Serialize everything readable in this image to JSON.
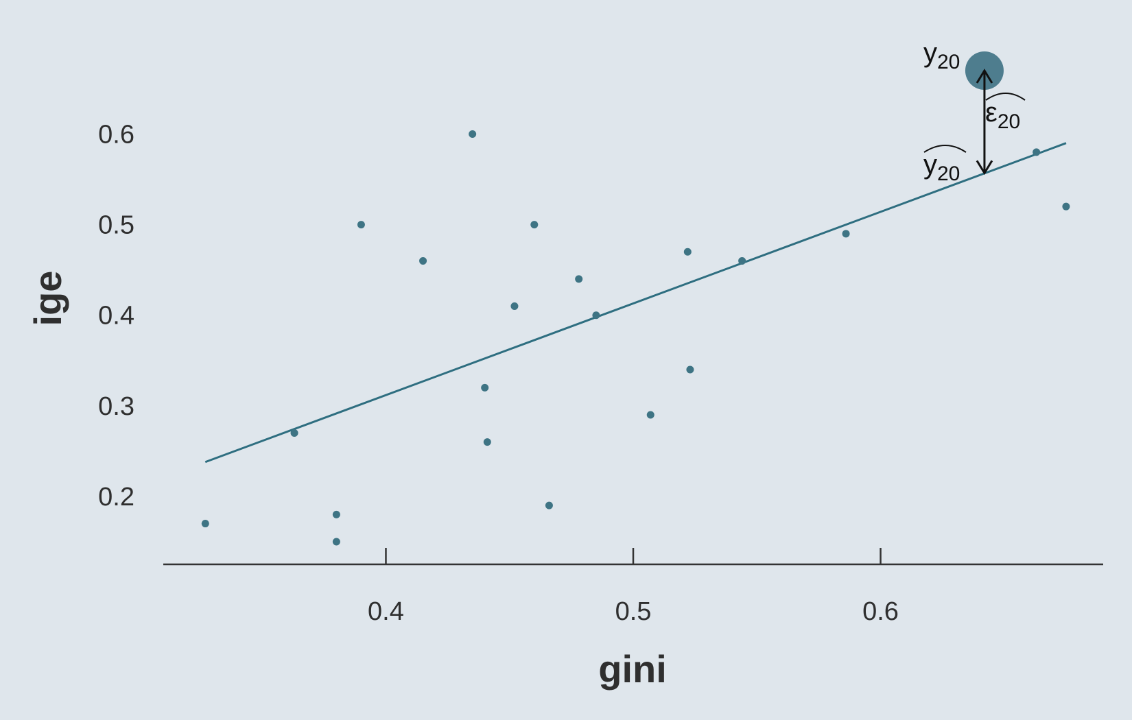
{
  "chart_data": {
    "type": "scatter",
    "title": "",
    "xlabel": "gini",
    "ylabel": "ige",
    "xlim": [
      0.31,
      0.69
    ],
    "ylim": [
      0.125,
      0.695
    ],
    "x_ticks": [
      {
        "value": 0.4,
        "label": "0.4"
      },
      {
        "value": 0.5,
        "label": "0.5"
      },
      {
        "value": 0.6,
        "label": "0.6"
      }
    ],
    "y_ticks": [
      {
        "value": 0.2,
        "label": "0.2"
      },
      {
        "value": 0.3,
        "label": "0.3"
      },
      {
        "value": 0.4,
        "label": "0.4"
      },
      {
        "value": 0.5,
        "label": "0.5"
      },
      {
        "value": 0.6,
        "label": "0.6"
      }
    ],
    "grid": false,
    "legend": "none",
    "colors": {
      "background": "#dfe6ec",
      "point": "#3e7484",
      "line": "#2e6e80",
      "highlight": "#467789",
      "axis": "#333333",
      "annotation": "#111111"
    },
    "points": [
      {
        "x": 0.327,
        "y": 0.17
      },
      {
        "x": 0.363,
        "y": 0.27
      },
      {
        "x": 0.38,
        "y": 0.18
      },
      {
        "x": 0.38,
        "y": 0.15
      },
      {
        "x": 0.39,
        "y": 0.5
      },
      {
        "x": 0.415,
        "y": 0.46
      },
      {
        "x": 0.435,
        "y": 0.6
      },
      {
        "x": 0.44,
        "y": 0.32
      },
      {
        "x": 0.441,
        "y": 0.26
      },
      {
        "x": 0.452,
        "y": 0.41
      },
      {
        "x": 0.46,
        "y": 0.5
      },
      {
        "x": 0.466,
        "y": 0.19
      },
      {
        "x": 0.478,
        "y": 0.44
      },
      {
        "x": 0.485,
        "y": 0.4
      },
      {
        "x": 0.507,
        "y": 0.29
      },
      {
        "x": 0.522,
        "y": 0.47
      },
      {
        "x": 0.523,
        "y": 0.34
      },
      {
        "x": 0.544,
        "y": 0.46
      },
      {
        "x": 0.586,
        "y": 0.49
      },
      {
        "x": 0.663,
        "y": 0.58
      },
      {
        "x": 0.675,
        "y": 0.52
      }
    ],
    "highlight_point": {
      "x": 0.642,
      "y": 0.67
    },
    "regression_line": {
      "x": [
        0.327,
        0.675
      ],
      "y": [
        0.238,
        0.59
      ]
    },
    "annotations": {
      "observed_label": {
        "main": "y",
        "sub": "20"
      },
      "residual_label": {
        "main": "ε",
        "sub": "20"
      },
      "fitted_label": {
        "main": "y",
        "sub": "20"
      },
      "residual_x": 0.642,
      "residual_from_y": 0.67,
      "residual_to_y": 0.557
    }
  }
}
